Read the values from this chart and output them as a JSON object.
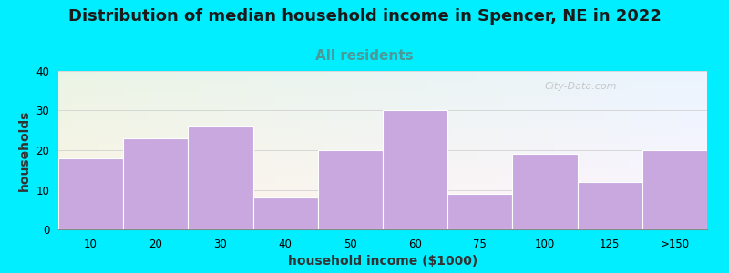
{
  "title": "Distribution of median household income in Spencer, NE in 2022",
  "subtitle": "All residents",
  "xlabel": "household income ($1000)",
  "ylabel": "households",
  "categories": [
    "10",
    "20",
    "30",
    "40",
    "50",
    "60",
    "75",
    "100",
    "125",
    ">150"
  ],
  "values": [
    18,
    23,
    26,
    8,
    20,
    30,
    9,
    19,
    12,
    20
  ],
  "bar_color": "#c9a8e0",
  "background_outer": "#00eeff",
  "ylim": [
    0,
    40
  ],
  "yticks": [
    0,
    10,
    20,
    30,
    40
  ],
  "title_fontsize": 13,
  "subtitle_fontsize": 11,
  "subtitle_color": "#4a9a9a",
  "axis_label_fontsize": 10,
  "watermark": "City-Data.com",
  "title_color": "#1a1a1a"
}
